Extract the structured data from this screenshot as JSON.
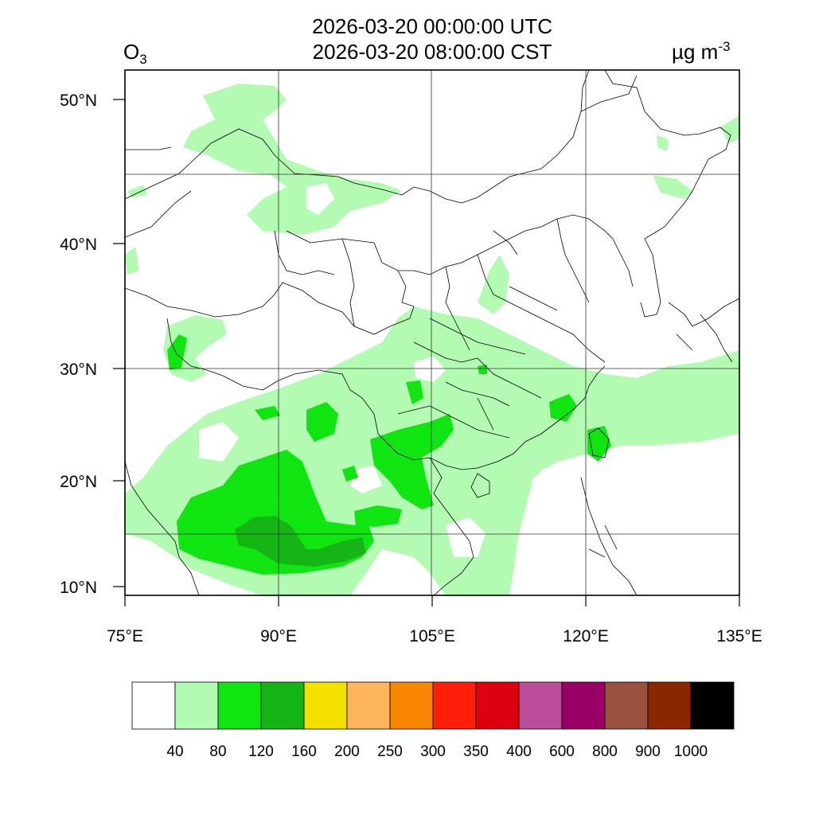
{
  "header": {
    "variable": "O",
    "variable_subscript": "3",
    "time_utc": "2026-03-20 00:00:00 UTC",
    "time_cst": "2026-03-20 08:00:00 CST",
    "unit": "µg m",
    "unit_superscript": "-3"
  },
  "map": {
    "lon_range": [
      75,
      135
    ],
    "lat_range": [
      9,
      52
    ],
    "lon_labels": [
      {
        "lon": 75,
        "text": "75°E"
      },
      {
        "lon": 90,
        "text": "90°E"
      },
      {
        "lon": 105,
        "text": "105°E"
      },
      {
        "lon": 120,
        "text": "120°E"
      },
      {
        "lon": 135,
        "text": "135°E"
      }
    ],
    "lat_labels": [
      {
        "lat": 10,
        "text": "10°N"
      },
      {
        "lat": 20,
        "text": "20°N"
      },
      {
        "lat": 30,
        "text": "30°N"
      },
      {
        "lat": 40,
        "text": "40°N"
      },
      {
        "lat": 50,
        "text": "50°N"
      }
    ]
  },
  "colorbar": {
    "colors": [
      "#ffffff",
      "#b3fab3",
      "#11e511",
      "#15b515",
      "#f2e000",
      "#fdb55d",
      "#f68500",
      "#fe1f0a",
      "#dd0010",
      "#bb4b9b",
      "#990066",
      "#995240",
      "#8a2700",
      "#000000"
    ],
    "labels": [
      "40",
      "80",
      "120",
      "160",
      "200",
      "250",
      "300",
      "350",
      "400",
      "600",
      "800",
      "900",
      "1000"
    ]
  }
}
